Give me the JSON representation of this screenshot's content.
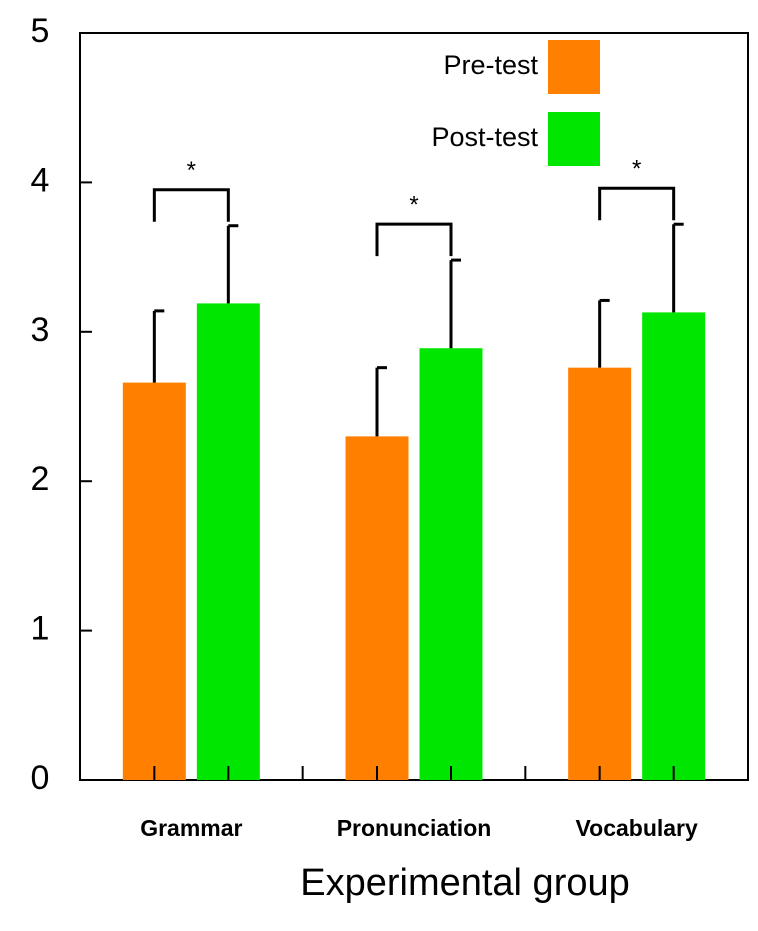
{
  "chart_data": {
    "type": "bar",
    "x_label": "Experimental group",
    "categories": [
      "Grammar",
      "Pronunciation",
      "Vocabulary"
    ],
    "series": [
      {
        "name": "Pre-test",
        "color": "#ff8000",
        "values": [
          2.66,
          2.3,
          2.76
        ],
        "errors": [
          0.48,
          0.46,
          0.45
        ]
      },
      {
        "name": "Post-test",
        "color": "#00e600",
        "values": [
          3.19,
          2.89,
          3.13
        ],
        "errors": [
          0.52,
          0.59,
          0.59
        ]
      }
    ],
    "annotations": [
      "*",
      "*",
      "*"
    ],
    "ylim": [
      0,
      5
    ],
    "yticks": [
      0,
      1,
      2,
      3,
      4,
      5
    ],
    "grid": false,
    "legend": "upper right"
  }
}
